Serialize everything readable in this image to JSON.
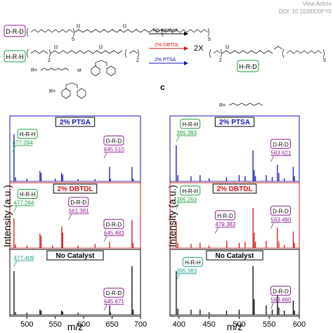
{
  "header": {
    "view_article": "View Article",
    "doi": "DOI: 10.1039/D0PY0"
  },
  "scheme": {
    "label_drd": "D-R-D",
    "label_hrh": "H-R-H",
    "label_hrd": "H-R-D",
    "sub_5a": "5",
    "sub_2a": "2",
    "sub_2b": "2",
    "sub_5b": "5",
    "arrow_no_catalyst": "No catalyst",
    "arrow_dbtdl": "2% DBTDL",
    "arrow_ptsa": "2% PTSA",
    "factor": "2X",
    "r_label": "R=",
    "or_label": "or",
    "r_label_left": "R=",
    "r_label_right": "R=",
    "panel_c": "c"
  },
  "colors": {
    "ptsa": "#1414b4",
    "dbtdl": "#d21414",
    "none": "#000000",
    "hrh": "#1e9e3c",
    "drd": "#8c1e8c",
    "teal_peak": "#19a08c"
  },
  "chart_data": [
    {
      "type": "line",
      "xlabel": "m/z",
      "ylabel": "Intensity (a.u.)",
      "xlim": [
        470,
        700
      ],
      "xticks": [
        500,
        550,
        600,
        650,
        700
      ],
      "r_group": "xylylene",
      "panels": [
        {
          "name": "2% PTSA",
          "color": "#1414b4",
          "peaks": [
            [
              477.3,
              0.92
            ],
            [
              480,
              0.08
            ],
            [
              500,
              0.05
            ],
            [
              523,
              0.2
            ],
            [
              525,
              0.16
            ],
            [
              550,
              0.05
            ],
            [
              561,
              0.16
            ],
            [
              563,
              0.13
            ],
            [
              590,
              0.04
            ],
            [
              620,
              0.04
            ],
            [
              645.5,
              0.28
            ],
            [
              647,
              0.05
            ],
            [
              685,
              0.28
            ],
            [
              687,
              0.05
            ]
          ],
          "annotations": [
            {
              "species": "H-R-H",
              "mz": "477.284",
              "kind": "hrh"
            },
            {
              "species": "D-R-D",
              "mz": "645.510",
              "kind": "drd"
            }
          ]
        },
        {
          "name": "2% DBTDL",
          "color": "#d21414",
          "peaks": [
            [
              477.3,
              0.58
            ],
            [
              480,
              0.07
            ],
            [
              500,
              0.05
            ],
            [
              523,
              0.28
            ],
            [
              525,
              0.24
            ],
            [
              545,
              0.05
            ],
            [
              561.4,
              0.42
            ],
            [
              563,
              0.3
            ],
            [
              590,
              0.05
            ],
            [
              620,
              0.08
            ],
            [
              645.5,
              0.12
            ],
            [
              685,
              0.55
            ],
            [
              687,
              0.1
            ]
          ],
          "annotations": [
            {
              "species": "H-R-H",
              "mz": "477.264",
              "kind": "hrh"
            },
            {
              "species": "D-R-D",
              "mz": "561.381",
              "kind": "drd"
            },
            {
              "species": "D-R-D",
              "mz": "645.483",
              "kind": "drd"
            }
          ]
        },
        {
          "name": "No Catalyst",
          "color": "#000000",
          "peaks": [
            [
              477.4,
              0.85
            ],
            [
              480,
              0.05
            ],
            [
              500,
              0.04
            ],
            [
              523,
              0.1
            ],
            [
              525,
              0.08
            ],
            [
              561,
              0.08
            ],
            [
              563,
              0.06
            ],
            [
              590,
              0.04
            ],
            [
              645.7,
              0.18
            ],
            [
              647,
              0.04
            ],
            [
              685,
              0.95
            ],
            [
              687,
              0.1
            ]
          ],
          "annotations": [
            {
              "species": "",
              "mz": "477.409",
              "kind": "teal"
            },
            {
              "species": "D-R-D",
              "mz": "645.671",
              "kind": "drd"
            }
          ]
        }
      ]
    },
    {
      "type": "line",
      "xlabel": "m/z",
      "ylabel": "Intensity (a.u.)",
      "xlim": [
        385,
        600
      ],
      "xticks": [
        400,
        450,
        500,
        550,
        600
      ],
      "r_group": "hexylene",
      "panels": [
        {
          "name": "2% PTSA",
          "color": "#1414b4",
          "peaks": [
            [
              395.4,
              0.7
            ],
            [
              398,
              0.12
            ],
            [
              420,
              0.1
            ],
            [
              435,
              0.12
            ],
            [
              450,
              0.06
            ],
            [
              479,
              0.08
            ],
            [
              500,
              0.12
            ],
            [
              510,
              0.1
            ],
            [
              523,
              0.6
            ],
            [
              525,
              0.22
            ],
            [
              527,
              0.1
            ],
            [
              545,
              0.12
            ],
            [
              555,
              0.08
            ],
            [
              563.6,
              0.32
            ],
            [
              566,
              0.16
            ],
            [
              575,
              0.06
            ],
            [
              590,
              0.28
            ],
            [
              592,
              0.1
            ]
          ],
          "annotations": [
            {
              "species": "H-R-H",
              "mz": "395.393",
              "kind": "hrh"
            },
            {
              "species": "D-R-D",
              "mz": "563.621",
              "kind": "drd"
            }
          ]
        },
        {
          "name": "2% DBTDL",
          "color": "#d21414",
          "peaks": [
            [
              395.3,
              0.52
            ],
            [
              398,
              0.1
            ],
            [
              420,
              0.08
            ],
            [
              435,
              0.1
            ],
            [
              450,
              0.05
            ],
            [
              479.4,
              0.14
            ],
            [
              500,
              0.1
            ],
            [
              510,
              0.12
            ],
            [
              523,
              0.78
            ],
            [
              525,
              0.3
            ],
            [
              527,
              0.12
            ],
            [
              545,
              0.14
            ],
            [
              563.5,
              0.4
            ],
            [
              566,
              0.12
            ],
            [
              575,
              0.06
            ],
            [
              590,
              0.32
            ],
            [
              592,
              0.1
            ]
          ],
          "annotations": [
            {
              "species": "H-R-H",
              "mz": "395.263",
              "kind": "hrh"
            },
            {
              "species": "H-R-D",
              "mz": "479.383",
              "kind": "drd"
            },
            {
              "species": "D-R-D",
              "mz": "563.490",
              "kind": "drd"
            }
          ]
        },
        {
          "name": "No Catalyst",
          "color": "#000000",
          "peaks": [
            [
              395.4,
              0.85
            ],
            [
              398,
              0.12
            ],
            [
              420,
              0.1
            ],
            [
              435,
              0.1
            ],
            [
              450,
              0.05
            ],
            [
              479,
              0.08
            ],
            [
              500,
              0.1
            ],
            [
              523,
              0.95
            ],
            [
              525,
              0.3
            ],
            [
              545,
              0.18
            ],
            [
              555,
              0.1
            ],
            [
              563.7,
              0.38
            ],
            [
              566,
              0.14
            ],
            [
              575,
              0.08
            ],
            [
              590,
              0.28
            ],
            [
              592,
              0.08
            ]
          ],
          "annotations": [
            {
              "species": "H-R-H",
              "mz": "395.383",
              "kind": "teal"
            },
            {
              "species": "D-R-D",
              "mz": "563.660",
              "kind": "drd"
            }
          ]
        }
      ]
    }
  ]
}
